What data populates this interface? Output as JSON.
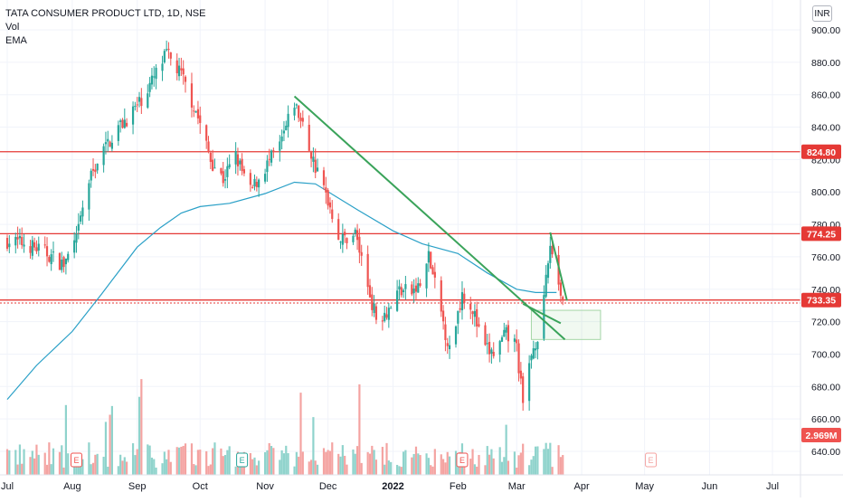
{
  "legend": {
    "symbol": "TATA CONSUMER PRODUCT LTD, 1D, NSE",
    "vol": "Vol",
    "ema": "EMA"
  },
  "currency": "INR",
  "colors": {
    "up": "#26a69a",
    "down": "#ef5350",
    "ema": "#2aa0c7",
    "trend": "#3aa35a",
    "hline": "#e53935",
    "vol_up": "#8fd3cc",
    "vol_down": "#f4a3a1"
  },
  "chart_data": {
    "type": "candlestick",
    "title": "TATA CONSUMER PRODUCT LTD, 1D, NSE",
    "ylim": [
      628,
      905
    ],
    "y_ticks": [
      "640.00",
      "660.00",
      "680.00",
      "700.00",
      "720.00",
      "740.00",
      "760.00",
      "780.00",
      "800.00",
      "820.00",
      "840.00",
      "860.00",
      "880.00",
      "900.00"
    ],
    "x_ticks": [
      "Jul",
      "Aug",
      "Sep",
      "Oct",
      "Nov",
      "Dec",
      "2022",
      "Feb",
      "Mar",
      "Apr",
      "May",
      "Jun",
      "Jul"
    ],
    "x_tick_dates": [
      "2021-07-01",
      "2021-08-01",
      "2021-09-01",
      "2021-10-01",
      "2021-11-01",
      "2021-12-01",
      "2022-01-01",
      "2022-02-01",
      "2022-03-01",
      "2022-04-01",
      "2022-05-01",
      "2022-06-01",
      "2022-07-01"
    ],
    "price_labels": [
      {
        "text": "824.80",
        "value": 824.8
      },
      {
        "text": "774.25",
        "value": 774.25
      },
      {
        "text": "733.35",
        "value": 733.35
      }
    ],
    "volume_label": "2.969M",
    "horizontal_lines": [
      824.8,
      774.25,
      733.35,
      731.5
    ],
    "trendlines": [
      {
        "from": [
          "2021-11-15",
          859
        ],
        "to": [
          "2022-03-24",
          709
        ]
      },
      {
        "from": [
          "2022-03-04",
          731
        ],
        "to": [
          "2022-03-22",
          719
        ]
      },
      {
        "from": [
          "2022-03-17",
          775
        ],
        "to": [
          "2022-03-25",
          733
        ]
      }
    ],
    "target_box": {
      "from": [
        "2022-03-08",
        727
      ],
      "to": [
        "2022-04-10",
        709
      ]
    },
    "earnings_markers": [
      "2021-08-03",
      "2021-10-21",
      "2022-02-03",
      "2022-05-04"
    ],
    "ema_points": [
      [
        "2021-07-01",
        672
      ],
      [
        "2021-07-15",
        693
      ],
      [
        "2021-08-01",
        714
      ],
      [
        "2021-08-15",
        737
      ],
      [
        "2021-09-01",
        766
      ],
      [
        "2021-09-12",
        778
      ],
      [
        "2021-09-22",
        787
      ],
      [
        "2021-10-01",
        791
      ],
      [
        "2021-10-15",
        793
      ],
      [
        "2021-11-01",
        799
      ],
      [
        "2021-11-15",
        806
      ],
      [
        "2021-11-25",
        805
      ],
      [
        "2021-12-05",
        797
      ],
      [
        "2021-12-15",
        789
      ],
      [
        "2022-01-01",
        776
      ],
      [
        "2022-01-15",
        768
      ],
      [
        "2022-02-01",
        762
      ],
      [
        "2022-02-15",
        750
      ],
      [
        "2022-03-01",
        740
      ],
      [
        "2022-03-10",
        738
      ],
      [
        "2022-03-20",
        738
      ]
    ],
    "price_points": [
      [
        "2021-07-01",
        770
      ],
      [
        "2021-07-10",
        768
      ],
      [
        "2021-07-20",
        762
      ],
      [
        "2021-07-28",
        755
      ],
      [
        "2021-08-03",
        770
      ],
      [
        "2021-08-08",
        803
      ],
      [
        "2021-08-14",
        822
      ],
      [
        "2021-08-22",
        838
      ],
      [
        "2021-09-01",
        853
      ],
      [
        "2021-09-08",
        868
      ],
      [
        "2021-09-15",
        885
      ],
      [
        "2021-09-22",
        872
      ],
      [
        "2021-09-29",
        850
      ],
      [
        "2021-10-06",
        820
      ],
      [
        "2021-10-12",
        808
      ],
      [
        "2021-10-18",
        822
      ],
      [
        "2021-10-25",
        800
      ],
      [
        "2021-11-01",
        815
      ],
      [
        "2021-11-08",
        828
      ],
      [
        "2021-11-15",
        855
      ],
      [
        "2021-11-19",
        840
      ],
      [
        "2021-11-25",
        815
      ],
      [
        "2021-12-01",
        795
      ],
      [
        "2021-12-07",
        770
      ],
      [
        "2021-12-14",
        775
      ],
      [
        "2021-12-20",
        742
      ],
      [
        "2021-12-24",
        722
      ],
      [
        "2021-12-30",
        728
      ],
      [
        "2022-01-04",
        740
      ],
      [
        "2022-01-10",
        738
      ],
      [
        "2022-01-14",
        742
      ],
      [
        "2022-01-18",
        760
      ],
      [
        "2022-01-24",
        725
      ],
      [
        "2022-01-28",
        702
      ],
      [
        "2022-02-03",
        738
      ],
      [
        "2022-02-08",
        728
      ],
      [
        "2022-02-13",
        704
      ],
      [
        "2022-02-18",
        700
      ],
      [
        "2022-02-24",
        712
      ],
      [
        "2022-03-01",
        705
      ],
      [
        "2022-03-04",
        668
      ],
      [
        "2022-03-08",
        700
      ],
      [
        "2022-03-13",
        720
      ],
      [
        "2022-03-17",
        768
      ],
      [
        "2022-03-20",
        750
      ],
      [
        "2022-03-23",
        733
      ]
    ]
  }
}
